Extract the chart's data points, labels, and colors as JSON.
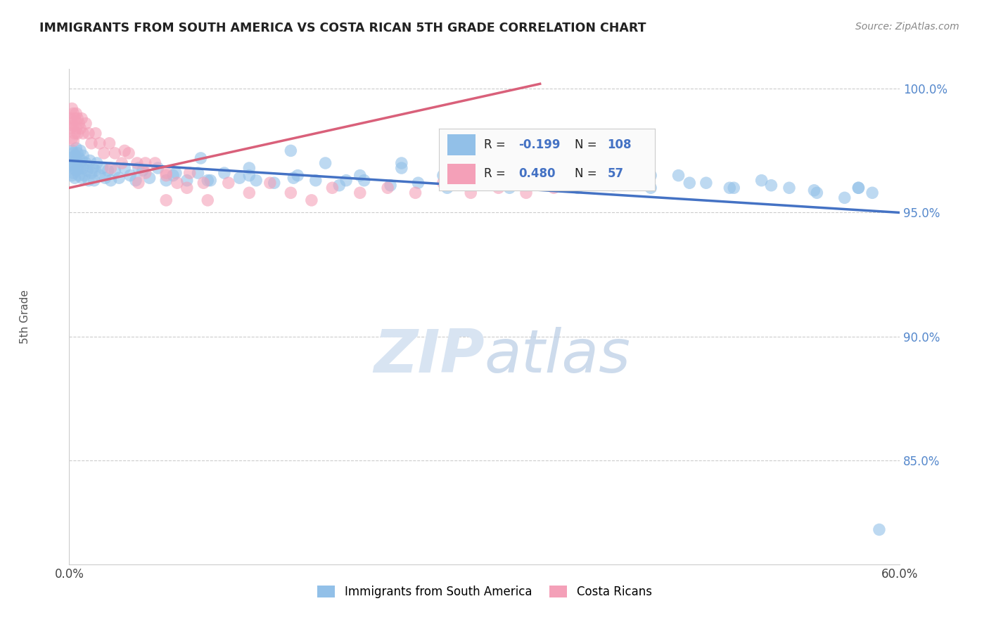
{
  "title": "IMMIGRANTS FROM SOUTH AMERICA VS COSTA RICAN 5TH GRADE CORRELATION CHART",
  "source": "Source: ZipAtlas.com",
  "ylabel": "5th Grade",
  "x_min": 0.0,
  "x_max": 0.6,
  "y_min": 0.808,
  "y_max": 1.008,
  "blue_color": "#92C0E8",
  "pink_color": "#F4A0B8",
  "blue_line_color": "#4472C4",
  "pink_line_color": "#D9607A",
  "watermark_color": "#D8E4F2",
  "R_blue": -0.199,
  "N_blue": 108,
  "R_pink": 0.48,
  "N_pink": 57,
  "blue_trend_x0": 0.0,
  "blue_trend_y0": 0.971,
  "blue_trend_x1": 0.6,
  "blue_trend_y1": 0.95,
  "pink_trend_x0": 0.0,
  "pink_trend_y0": 0.96,
  "pink_trend_x1": 0.34,
  "pink_trend_y1": 1.002,
  "blue_x": [
    0.001,
    0.001,
    0.002,
    0.002,
    0.002,
    0.003,
    0.003,
    0.003,
    0.004,
    0.004,
    0.004,
    0.005,
    0.005,
    0.005,
    0.006,
    0.006,
    0.007,
    0.007,
    0.008,
    0.008,
    0.009,
    0.009,
    0.01,
    0.01,
    0.011,
    0.012,
    0.013,
    0.014,
    0.015,
    0.016,
    0.017,
    0.018,
    0.019,
    0.02,
    0.022,
    0.024,
    0.026,
    0.028,
    0.03,
    0.033,
    0.036,
    0.04,
    0.044,
    0.048,
    0.053,
    0.058,
    0.064,
    0.07,
    0.077,
    0.085,
    0.093,
    0.102,
    0.112,
    0.123,
    0.135,
    0.148,
    0.162,
    0.178,
    0.195,
    0.213,
    0.232,
    0.252,
    0.273,
    0.295,
    0.318,
    0.342,
    0.367,
    0.393,
    0.42,
    0.448,
    0.477,
    0.507,
    0.538,
    0.57,
    0.05,
    0.075,
    0.1,
    0.13,
    0.165,
    0.2,
    0.24,
    0.28,
    0.32,
    0.36,
    0.39,
    0.42,
    0.095,
    0.13,
    0.16,
    0.185,
    0.21,
    0.24,
    0.27,
    0.3,
    0.33,
    0.36,
    0.39,
    0.415,
    0.44,
    0.46,
    0.48,
    0.5,
    0.52,
    0.54,
    0.56,
    0.57,
    0.58,
    0.585
  ],
  "blue_y": [
    0.972,
    0.969,
    0.975,
    0.968,
    0.965,
    0.974,
    0.97,
    0.966,
    0.973,
    0.969,
    0.964,
    0.976,
    0.971,
    0.967,
    0.974,
    0.968,
    0.972,
    0.965,
    0.975,
    0.968,
    0.971,
    0.964,
    0.973,
    0.968,
    0.965,
    0.97,
    0.967,
    0.963,
    0.971,
    0.966,
    0.968,
    0.963,
    0.967,
    0.97,
    0.965,
    0.968,
    0.964,
    0.967,
    0.963,
    0.967,
    0.964,
    0.968,
    0.965,
    0.963,
    0.967,
    0.964,
    0.968,
    0.963,
    0.966,
    0.963,
    0.966,
    0.963,
    0.966,
    0.964,
    0.963,
    0.962,
    0.964,
    0.963,
    0.961,
    0.963,
    0.961,
    0.962,
    0.96,
    0.962,
    0.96,
    0.962,
    0.96,
    0.961,
    0.96,
    0.962,
    0.96,
    0.961,
    0.959,
    0.96,
    0.968,
    0.965,
    0.963,
    0.968,
    0.965,
    0.963,
    0.968,
    0.965,
    0.963,
    0.966,
    0.962,
    0.965,
    0.972,
    0.965,
    0.975,
    0.97,
    0.965,
    0.97,
    0.965,
    0.968,
    0.965,
    0.962,
    0.965,
    0.962,
    0.965,
    0.962,
    0.96,
    0.963,
    0.96,
    0.958,
    0.956,
    0.96,
    0.958,
    0.822
  ],
  "pink_x": [
    0.001,
    0.001,
    0.002,
    0.002,
    0.002,
    0.003,
    0.003,
    0.003,
    0.004,
    0.004,
    0.005,
    0.005,
    0.006,
    0.006,
    0.007,
    0.008,
    0.009,
    0.01,
    0.012,
    0.014,
    0.016,
    0.019,
    0.022,
    0.025,
    0.029,
    0.033,
    0.038,
    0.043,
    0.049,
    0.055,
    0.062,
    0.07,
    0.078,
    0.087,
    0.097,
    0.04,
    0.055,
    0.07,
    0.085,
    0.1,
    0.115,
    0.13,
    0.145,
    0.16,
    0.175,
    0.19,
    0.21,
    0.23,
    0.25,
    0.27,
    0.29,
    0.31,
    0.33,
    0.35,
    0.03,
    0.05,
    0.07
  ],
  "pink_y": [
    0.988,
    0.984,
    0.992,
    0.986,
    0.98,
    0.99,
    0.985,
    0.979,
    0.988,
    0.982,
    0.99,
    0.984,
    0.988,
    0.982,
    0.986,
    0.984,
    0.988,
    0.982,
    0.986,
    0.982,
    0.978,
    0.982,
    0.978,
    0.974,
    0.978,
    0.974,
    0.97,
    0.974,
    0.97,
    0.966,
    0.97,
    0.966,
    0.962,
    0.966,
    0.962,
    0.975,
    0.97,
    0.965,
    0.96,
    0.955,
    0.962,
    0.958,
    0.962,
    0.958,
    0.955,
    0.96,
    0.958,
    0.96,
    0.958,
    0.962,
    0.958,
    0.96,
    0.958,
    0.96,
    0.968,
    0.962,
    0.955
  ]
}
